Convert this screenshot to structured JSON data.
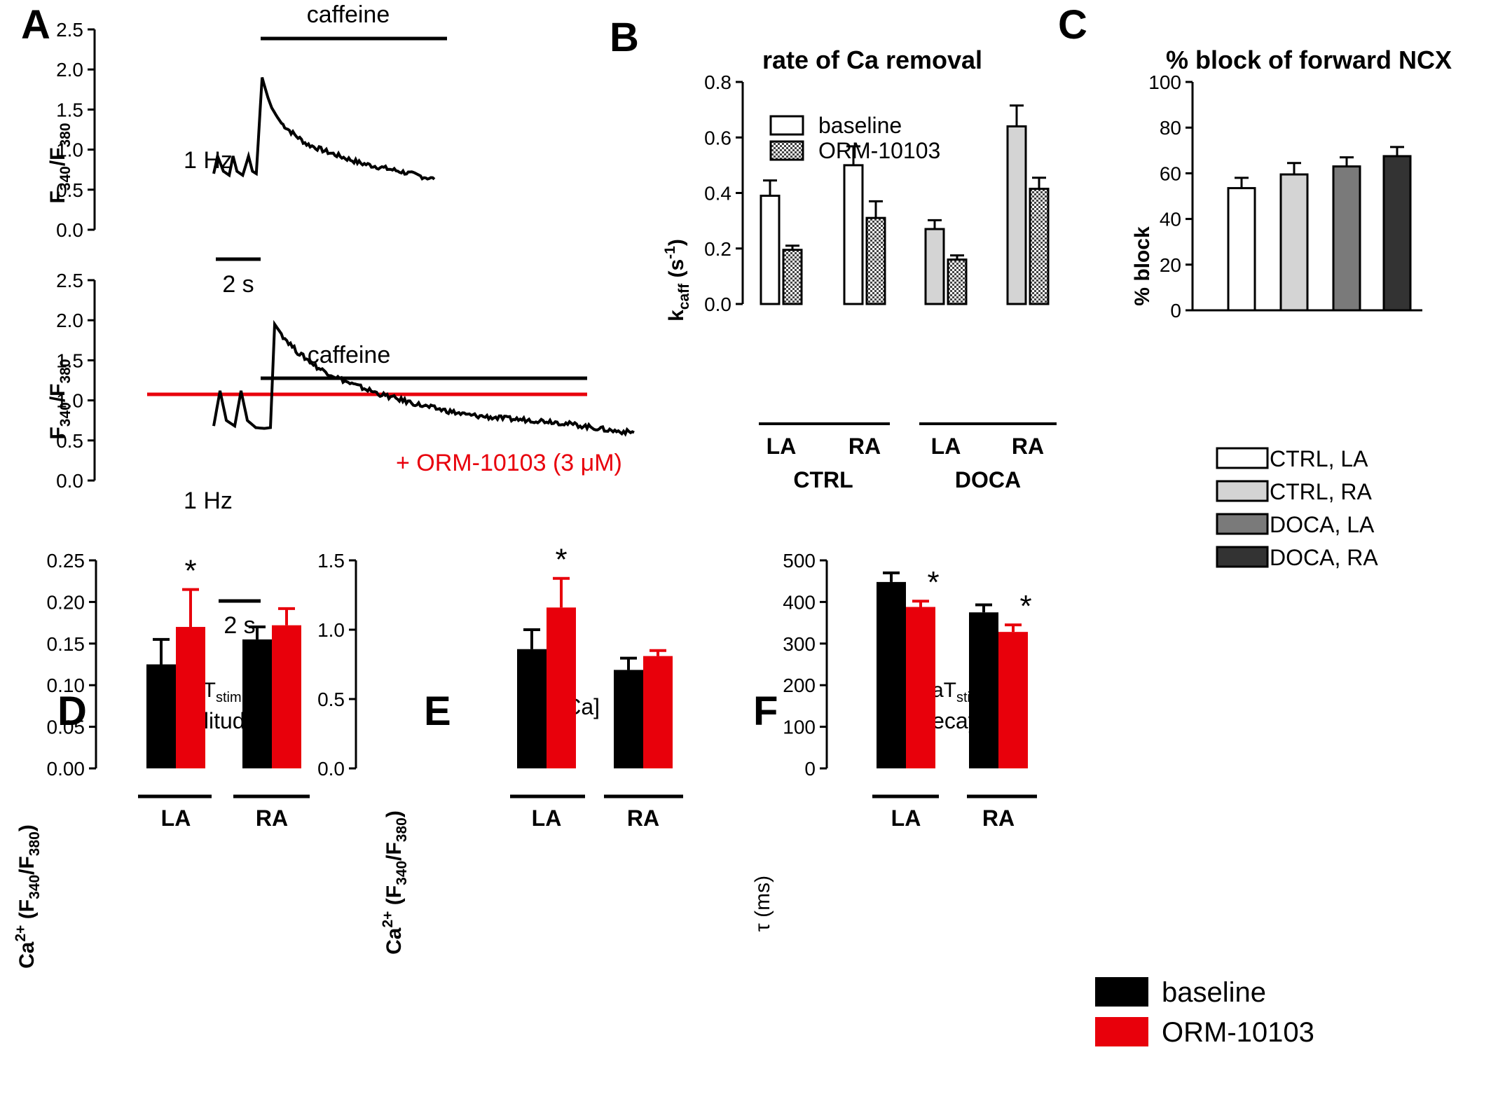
{
  "colors": {
    "baseline": "#000000",
    "drug": "#e8000b",
    "ctrl_la": "#ffffff",
    "ctrl_ra": "#d4d4d4",
    "doca_la": "#7a7a7a",
    "doca_ra": "#333333"
  },
  "chart_data": [
    {
      "panel": "A",
      "type": "line",
      "traces": [
        {
          "bar_label": "caffeine",
          "pacing_label": "1 Hz",
          "scalebar_label": "2 s",
          "ylabel_main": "F",
          "ylabel_sub1": "340",
          "ylabel_slash": "/F",
          "ylabel_sub2": "380",
          "ylim": [
            0,
            2.5
          ],
          "yticks": [
            "0.0",
            "0.5",
            "1.0",
            "1.5",
            "2.0",
            "2.5"
          ],
          "x": [
            0.0,
            0.1,
            0.25,
            0.4,
            0.5,
            0.6,
            0.75,
            0.9,
            1.0,
            1.1,
            1.25,
            1.4,
            1.5,
            1.65,
            1.75,
            2.0,
            2.4,
            3.0,
            3.8,
            4.8,
            5.7
          ],
          "y": [
            0.7,
            0.92,
            0.73,
            0.68,
            0.92,
            0.73,
            0.68,
            0.92,
            0.73,
            0.7,
            1.9,
            1.65,
            1.52,
            1.4,
            1.33,
            1.22,
            1.07,
            0.96,
            0.83,
            0.73,
            0.63
          ]
        },
        {
          "bar_label": "caffeine",
          "drug_label": "+ ORM-10103 (3 μM)",
          "pacing_label": "1 Hz",
          "scalebar_label": "2 s",
          "ylabel_main": "F",
          "ylabel_sub1": "340",
          "ylabel_slash": "/F",
          "ylabel_sub2": "380",
          "ylim": [
            0,
            2.5
          ],
          "yticks": [
            "0.0",
            "0.5",
            "1.0",
            "1.5",
            "2.0",
            "2.5"
          ],
          "x": [
            0.0,
            0.15,
            0.3,
            0.5,
            0.65,
            0.8,
            1.0,
            1.2,
            1.35,
            1.45,
            1.65,
            2.0,
            2.5,
            3.2,
            4.0,
            5.0,
            6.0,
            7.0,
            8.0,
            8.8,
            9.5,
            10.0
          ],
          "y": [
            0.68,
            1.12,
            0.75,
            0.68,
            1.12,
            0.75,
            0.66,
            0.65,
            0.66,
            1.95,
            1.8,
            1.6,
            1.4,
            1.22,
            1.07,
            0.93,
            0.82,
            0.77,
            0.74,
            0.68,
            0.62,
            0.6
          ]
        }
      ]
    },
    {
      "panel": "B",
      "type": "bar",
      "title": "rate of Ca removal",
      "ylabel_main": "k",
      "ylabel_sub": "caff",
      "ylabel_tail": " (s",
      "ylabel_sup": "-1",
      "ylabel_close": ")",
      "ylim": [
        0,
        0.8
      ],
      "yticks": [
        "0.0",
        "0.2",
        "0.4",
        "0.6",
        "0.8"
      ],
      "legend": [
        "baseline",
        "ORM-10103"
      ],
      "categories": [
        "LA",
        "RA",
        "LA",
        "RA"
      ],
      "groups": [
        "CTRL",
        "DOCA"
      ],
      "series": [
        {
          "name": "baseline",
          "values": [
            0.39,
            0.5,
            0.27,
            0.64
          ],
          "errors": [
            0.055,
            0.068,
            0.032,
            0.075
          ]
        },
        {
          "name": "ORM-10103",
          "values": [
            0.195,
            0.31,
            0.16,
            0.415
          ],
          "errors": [
            0.015,
            0.06,
            0.015,
            0.04
          ]
        }
      ]
    },
    {
      "panel": "C",
      "type": "bar",
      "title": "% block of forward NCX",
      "ylabel": "% block",
      "ylim": [
        0,
        100
      ],
      "yticks": [
        "0",
        "20",
        "40",
        "60",
        "80",
        "100"
      ],
      "categories": [
        "CTRL, LA",
        "CTRL, RA",
        "DOCA, LA",
        "DOCA, RA"
      ],
      "values": [
        53.5,
        59.5,
        63,
        67.5
      ],
      "errors": [
        4.5,
        5,
        4,
        4
      ],
      "legend": [
        "CTRL, LA",
        "CTRL, RA",
        "DOCA, LA",
        "DOCA, RA"
      ]
    },
    {
      "panel": "D",
      "type": "bar",
      "title_main": "CaT",
      "title_sub": "stim",
      "title_line2": "amplitude",
      "ylabel_main": "Ca",
      "ylabel_sup": "2+",
      "ylabel_mid": " (F",
      "ylabel_sub1": "340",
      "ylabel_slash": "/F",
      "ylabel_sub2": "380",
      "ylabel_close": ")",
      "ylim": [
        0,
        0.25
      ],
      "yticks": [
        "0.00",
        "0.05",
        "0.10",
        "0.15",
        "0.20",
        "0.25"
      ],
      "categories": [
        "LA",
        "RA"
      ],
      "series": [
        {
          "name": "baseline",
          "values": [
            0.125,
            0.155
          ],
          "errors": [
            0.03,
            0.015
          ]
        },
        {
          "name": "ORM-10103",
          "values": [
            0.17,
            0.172
          ],
          "errors": [
            0.045,
            0.02
          ]
        }
      ],
      "annotations": [
        {
          "text": "*",
          "category": "LA",
          "series": "ORM-10103"
        }
      ]
    },
    {
      "panel": "E",
      "type": "bar",
      "title": "SR [Ca]",
      "ylabel_main": "Ca",
      "ylabel_sup": "2+",
      "ylabel_mid": " (F",
      "ylabel_sub1": "340",
      "ylabel_slash": "/F",
      "ylabel_sub2": "380",
      "ylabel_close": ")",
      "ylim": [
        0,
        1.5
      ],
      "yticks": [
        "0.0",
        "0.5",
        "1.0",
        "1.5"
      ],
      "categories": [
        "LA",
        "RA"
      ],
      "series": [
        {
          "name": "baseline",
          "values": [
            0.86,
            0.71
          ],
          "errors": [
            0.14,
            0.085
          ]
        },
        {
          "name": "ORM-10103",
          "values": [
            1.16,
            0.81
          ],
          "errors": [
            0.21,
            0.04
          ]
        }
      ],
      "annotations": [
        {
          "text": "*",
          "category": "LA",
          "series": "ORM-10103"
        }
      ]
    },
    {
      "panel": "F",
      "type": "bar",
      "title_main": "CaT",
      "title_sub": "stim",
      "title_line2": "decay",
      "ylabel": "τ (ms)",
      "ylim": [
        0,
        500
      ],
      "yticks": [
        "0",
        "100",
        "200",
        "300",
        "400",
        "500"
      ],
      "categories": [
        "LA",
        "RA"
      ],
      "series": [
        {
          "name": "baseline",
          "values": [
            448,
            375
          ],
          "errors": [
            22,
            18
          ]
        },
        {
          "name": "ORM-10103",
          "values": [
            388,
            328
          ],
          "errors": [
            14,
            17
          ]
        }
      ],
      "annotations": [
        {
          "text": "*",
          "category": "LA",
          "series": "ORM-10103"
        },
        {
          "text": "*",
          "category": "RA",
          "series": "ORM-10103"
        }
      ]
    }
  ],
  "legend_def": [
    {
      "label": "baseline",
      "color": "#000000"
    },
    {
      "label": "ORM-10103",
      "color": "#e8000b"
    }
  ]
}
